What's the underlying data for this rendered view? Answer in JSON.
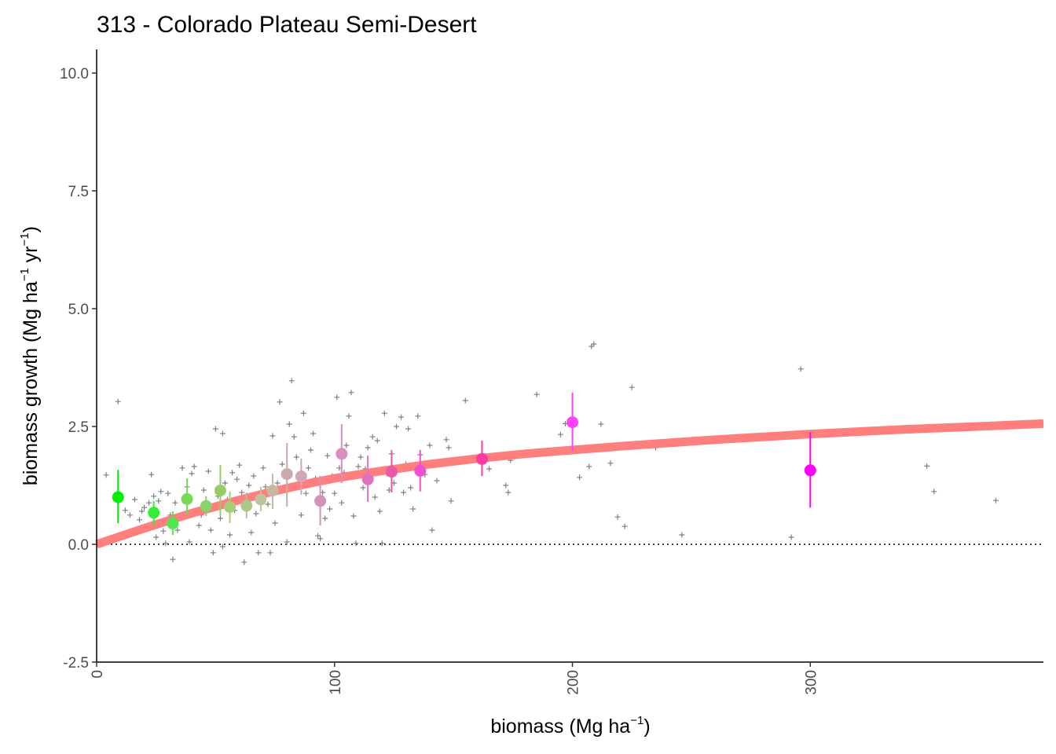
{
  "chart_data": {
    "type": "scatter",
    "title": "313 - Colorado Plateau Semi-Desert",
    "xlabel": {
      "main": "biomass (Mg ha",
      "sup": "−1",
      "end": ")"
    },
    "ylabel": {
      "main": "biomass growth (Mg ha",
      "sup1": "−1",
      "mid": " yr",
      "sup2": "−1",
      "end": ")"
    },
    "xlim": [
      0,
      398
    ],
    "ylim": [
      -2.5,
      10.5
    ],
    "x_ticks": [
      0,
      100,
      200,
      300
    ],
    "x_tick_labels": [
      "0",
      "100",
      "200",
      "300"
    ],
    "y_ticks": [
      -2.5,
      0,
      2.5,
      5,
      7.5,
      10
    ],
    "y_tick_labels": [
      "-2.5",
      "0.0",
      "2.5",
      "5.0",
      "7.5",
      "10.0"
    ],
    "grid": false,
    "reference_line": {
      "y": 0,
      "style": "dotted",
      "color": "#000000"
    },
    "colors": {
      "fit_line": "#ff7f7f",
      "raw_points": "#7f7f7f",
      "axis": "#000000"
    },
    "fit_curve": {
      "color": "#ff7f7f",
      "x": [
        0,
        10,
        20,
        30,
        40,
        50,
        60,
        70,
        80,
        90,
        100,
        110,
        120,
        130,
        140,
        150,
        160,
        170,
        180,
        190,
        200,
        220,
        240,
        260,
        280,
        300,
        320,
        340,
        360,
        380,
        398
      ],
      "y": [
        0.0,
        0.17,
        0.34,
        0.5,
        0.66,
        0.8,
        0.94,
        1.07,
        1.19,
        1.3,
        1.4,
        1.48,
        1.56,
        1.63,
        1.7,
        1.76,
        1.82,
        1.87,
        1.92,
        1.96,
        2.0,
        2.08,
        2.15,
        2.22,
        2.28,
        2.34,
        2.39,
        2.44,
        2.48,
        2.52,
        2.56
      ]
    },
    "binned_means": [
      {
        "x": 9,
        "y": 1.0,
        "lo": 0.45,
        "hi": 1.58,
        "color": "#00ee00"
      },
      {
        "x": 24,
        "y": 0.67,
        "lo": 0.4,
        "hi": 0.92,
        "color": "#33ee33"
      },
      {
        "x": 32,
        "y": 0.44,
        "lo": 0.2,
        "hi": 0.7,
        "color": "#4ee84e"
      },
      {
        "x": 38,
        "y": 0.96,
        "lo": 0.62,
        "hi": 1.4,
        "color": "#77d95a"
      },
      {
        "x": 46,
        "y": 0.81,
        "lo": 0.6,
        "hi": 1.02,
        "color": "#88d46a"
      },
      {
        "x": 52,
        "y": 1.14,
        "lo": 0.6,
        "hi": 1.68,
        "color": "#99cc66"
      },
      {
        "x": 56,
        "y": 0.79,
        "lo": 0.45,
        "hi": 1.12,
        "color": "#a8cc77"
      },
      {
        "x": 63,
        "y": 0.82,
        "lo": 0.55,
        "hi": 1.1,
        "color": "#aac888"
      },
      {
        "x": 69,
        "y": 0.95,
        "lo": 0.7,
        "hi": 1.22,
        "color": "#bbc49a"
      },
      {
        "x": 74,
        "y": 1.14,
        "lo": 0.75,
        "hi": 1.5,
        "color": "#c8b8a0"
      },
      {
        "x": 80,
        "y": 1.49,
        "lo": 0.8,
        "hi": 2.15,
        "color": "#ccaaaa"
      },
      {
        "x": 86,
        "y": 1.44,
        "lo": 1.05,
        "hi": 1.82,
        "color": "#d2a6b4"
      },
      {
        "x": 94,
        "y": 0.92,
        "lo": 0.4,
        "hi": 1.45,
        "color": "#d492b8"
      },
      {
        "x": 103,
        "y": 1.92,
        "lo": 1.3,
        "hi": 2.55,
        "color": "#d88ec0"
      },
      {
        "x": 114,
        "y": 1.38,
        "lo": 0.9,
        "hi": 1.88,
        "color": "#e070c0"
      },
      {
        "x": 124,
        "y": 1.54,
        "lo": 1.1,
        "hi": 2.0,
        "color": "#e85aa8"
      },
      {
        "x": 136,
        "y": 1.56,
        "lo": 1.12,
        "hi": 2.0,
        "color": "#f050d0"
      },
      {
        "x": 162,
        "y": 1.81,
        "lo": 1.45,
        "hi": 2.2,
        "color": "#ff3aa0"
      },
      {
        "x": 200,
        "y": 2.59,
        "lo": 2.0,
        "hi": 3.22,
        "color": "#ff40ff"
      },
      {
        "x": 300,
        "y": 1.57,
        "lo": 0.78,
        "hi": 2.38,
        "color": "#ff00ff"
      }
    ],
    "raw_points": [
      [
        4,
        1.47
      ],
      [
        9,
        3.03
      ],
      [
        12,
        0.72
      ],
      [
        14,
        0.62
      ],
      [
        16,
        0.95
      ],
      [
        18,
        0.52
      ],
      [
        19,
        0.7
      ],
      [
        20,
        0.78
      ],
      [
        21,
        0.35
      ],
      [
        22,
        0.88
      ],
      [
        23,
        1.48
      ],
      [
        24,
        1.02
      ],
      [
        25,
        0.15
      ],
      [
        26,
        0.92
      ],
      [
        27,
        1.12
      ],
      [
        27,
        0.45
      ],
      [
        28,
        0.28
      ],
      [
        29,
        0.02
      ],
      [
        30,
        1.08
      ],
      [
        31,
        0.62
      ],
      [
        32,
        -0.32
      ],
      [
        33,
        0.88
      ],
      [
        34,
        0.3
      ],
      [
        35,
        0.6
      ],
      [
        36,
        1.62
      ],
      [
        37,
        0.95
      ],
      [
        38,
        1.22
      ],
      [
        39,
        0.05
      ],
      [
        40,
        1.5
      ],
      [
        41,
        1.65
      ],
      [
        42,
        0.68
      ],
      [
        43,
        0.4
      ],
      [
        44,
        0.62
      ],
      [
        45,
        1.15
      ],
      [
        46,
        0.88
      ],
      [
        47,
        1.55
      ],
      [
        48,
        0.3
      ],
      [
        49,
        -0.18
      ],
      [
        50,
        2.45
      ],
      [
        51,
        1.02
      ],
      [
        52,
        0.55
      ],
      [
        53,
        2.35
      ],
      [
        53,
        -0.05
      ],
      [
        54,
        1.3
      ],
      [
        55,
        0.95
      ],
      [
        56,
        0.2
      ],
      [
        57,
        1.52
      ],
      [
        58,
        0.72
      ],
      [
        59,
        1.38
      ],
      [
        60,
        1.68
      ],
      [
        61,
        1.1
      ],
      [
        62,
        -0.38
      ],
      [
        63,
        0.9
      ],
      [
        64,
        1.25
      ],
      [
        65,
        0.25
      ],
      [
        66,
        1.45
      ],
      [
        67,
        0.65
      ],
      [
        68,
        -0.18
      ],
      [
        69,
        1.05
      ],
      [
        70,
        1.62
      ],
      [
        71,
        1.22
      ],
      [
        72,
        0.85
      ],
      [
        73,
        -0.18
      ],
      [
        74,
        2.3
      ],
      [
        75,
        0.45
      ],
      [
        76,
        1.3
      ],
      [
        77,
        3.02
      ],
      [
        78,
        1.7
      ],
      [
        79,
        1.15
      ],
      [
        80,
        0.05
      ],
      [
        81,
        2.55
      ],
      [
        82,
        3.47
      ],
      [
        83,
        2.28
      ],
      [
        84,
        1.85
      ],
      [
        85,
        1.25
      ],
      [
        86,
        0.62
      ],
      [
        87,
        2.78
      ],
      [
        88,
        1.08
      ],
      [
        89,
        1.62
      ],
      [
        90,
        2.0
      ],
      [
        91,
        2.35
      ],
      [
        92,
        1.4
      ],
      [
        93,
        0.18
      ],
      [
        94,
        0.12
      ],
      [
        95,
        1.1
      ],
      [
        96,
        0.55
      ],
      [
        97,
        1.88
      ],
      [
        98,
        0.75
      ],
      [
        99,
        1.45
      ],
      [
        100,
        1.08
      ],
      [
        101,
        3.12
      ],
      [
        102,
        1.62
      ],
      [
        103,
        0.88
      ],
      [
        104,
        1.52
      ],
      [
        105,
        2.1
      ],
      [
        106,
        2.72
      ],
      [
        107,
        3.22
      ],
      [
        108,
        0.6
      ],
      [
        109,
        0.02
      ],
      [
        110,
        1.65
      ],
      [
        111,
        1.85
      ],
      [
        112,
        1.2
      ],
      [
        113,
        1.6
      ],
      [
        114,
        2.05
      ],
      [
        115,
        1.42
      ],
      [
        116,
        2.28
      ],
      [
        117,
        1.0
      ],
      [
        118,
        2.2
      ],
      [
        119,
        0.7
      ],
      [
        120,
        0.02
      ],
      [
        121,
        2.78
      ],
      [
        122,
        1.5
      ],
      [
        123,
        1.15
      ],
      [
        124,
        1.92
      ],
      [
        125,
        1.3
      ],
      [
        126,
        2.5
      ],
      [
        127,
        1.6
      ],
      [
        128,
        2.7
      ],
      [
        129,
        1.1
      ],
      [
        130,
        1.7
      ],
      [
        131,
        2.45
      ],
      [
        132,
        1.2
      ],
      [
        133,
        0.75
      ],
      [
        134,
        1.65
      ],
      [
        135,
        2.72
      ],
      [
        136,
        1.9
      ],
      [
        138,
        1.48
      ],
      [
        140,
        2.1
      ],
      [
        141,
        0.3
      ],
      [
        143,
        1.35
      ],
      [
        145,
        1.75
      ],
      [
        147,
        2.22
      ],
      [
        148,
        2.05
      ],
      [
        149,
        0.92
      ],
      [
        155,
        3.05
      ],
      [
        165,
        1.6
      ],
      [
        172,
        1.25
      ],
      [
        173,
        1.1
      ],
      [
        174,
        1.78
      ],
      [
        185,
        3.18
      ],
      [
        186,
        1.98
      ],
      [
        195,
        2.33
      ],
      [
        197,
        2.56
      ],
      [
        203,
        1.42
      ],
      [
        207,
        1.65
      ],
      [
        208,
        4.2
      ],
      [
        209,
        4.25
      ],
      [
        212,
        2.55
      ],
      [
        216,
        1.72
      ],
      [
        219,
        0.58
      ],
      [
        222,
        0.38
      ],
      [
        225,
        3.33
      ],
      [
        235,
        2.05
      ],
      [
        246,
        0.2
      ],
      [
        275,
        2.3
      ],
      [
        292,
        0.15
      ],
      [
        296,
        3.72
      ],
      [
        349,
        1.66
      ],
      [
        352,
        1.12
      ],
      [
        378,
        0.93
      ]
    ]
  }
}
